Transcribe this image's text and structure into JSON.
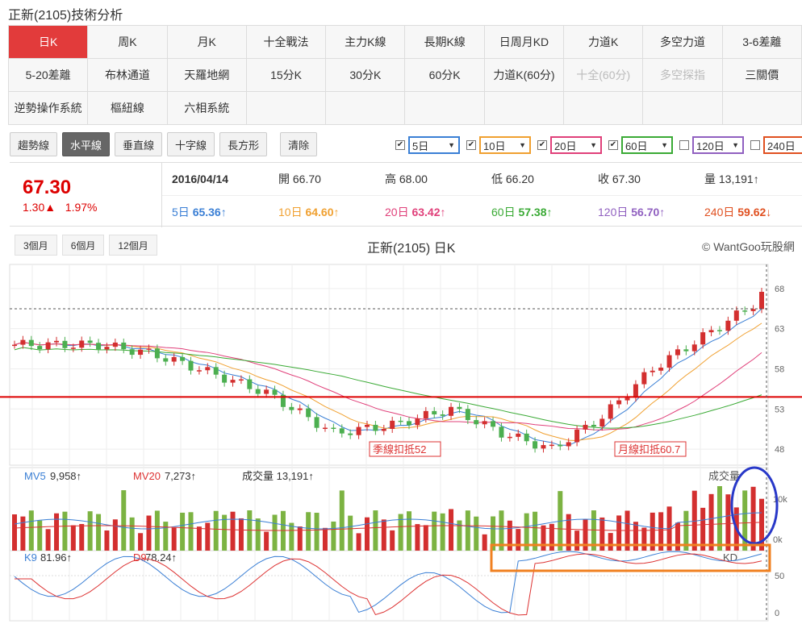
{
  "title": "正新(2105)技術分析",
  "tabs": [
    [
      "日K",
      "周K",
      "月K",
      "十全戰法",
      "主力K線",
      "長期K線",
      "日周月KD",
      "力道K",
      "多空力道",
      "3-6差離"
    ],
    [
      "5-20差離",
      "布林通道",
      "天羅地網",
      "15分K",
      "30分K",
      "60分K",
      "力道K(60分)",
      "十全(60分)",
      "多空探指",
      "三關價"
    ],
    [
      "逆勢操作系統",
      "樞紐線",
      "六相系統"
    ]
  ],
  "disabled_tabs": [
    "十全(60分)",
    "多空探指"
  ],
  "toolbar": [
    "趨勢線",
    "水平線",
    "垂直線",
    "十字線",
    "長方形",
    "清除"
  ],
  "ma_selects": [
    {
      "label": "5日",
      "checked": true,
      "color": "#3a7fd5"
    },
    {
      "label": "10日",
      "checked": true,
      "color": "#f0a030"
    },
    {
      "label": "20日",
      "checked": true,
      "color": "#e0407a"
    },
    {
      "label": "60日",
      "checked": true,
      "color": "#3aaa35"
    },
    {
      "label": "120日",
      "checked": false,
      "color": "#9060c0"
    },
    {
      "label": "240日",
      "checked": false,
      "color": "#e05020"
    }
  ],
  "quote": {
    "price": "67.30",
    "change": "1.30▲",
    "pct": "1.97%",
    "date": "2016/04/14",
    "open": "開 66.70",
    "high": "高 68.00",
    "low": "低 66.20",
    "close": "收 67.30",
    "volume": "量 13,191↑",
    "ma": [
      {
        "label": "5日 ",
        "value": "65.36",
        "arrow": "↑",
        "color": "#3a7fd5"
      },
      {
        "label": "10日 ",
        "value": "64.60",
        "arrow": "↑",
        "color": "#f0a030"
      },
      {
        "label": "20日 ",
        "value": "63.42",
        "arrow": "↑",
        "color": "#e0407a"
      },
      {
        "label": "60日 ",
        "value": "57.38",
        "arrow": "↑",
        "color": "#3aaa35"
      },
      {
        "label": "120日 ",
        "value": "56.70",
        "arrow": "↑",
        "color": "#9060c0"
      },
      {
        "label": "240日 ",
        "value": "59.62",
        "arrow": "↓",
        "color": "#e05020"
      }
    ]
  },
  "range_buttons": [
    "3個月",
    "6個月",
    "12個月"
  ],
  "chart_title": "正新(2105) 日K",
  "copyright": "© WantGoo玩股網",
  "chart_data": {
    "type": "candlestick",
    "price_ticks": [
      "68",
      "63",
      "58",
      "53",
      "48"
    ],
    "annotations": [
      "季線扣抵52",
      "月線扣抵60.7"
    ],
    "horizontal_line": 54.5,
    "volume_labels": {
      "mv5": "MV5",
      "mv5_value": "9,958↑",
      "mv20": "MV20",
      "mv20_value": "7,273↑",
      "vol": "成交量 13,191↑",
      "legend": "成交量",
      "tick_10k": "10k",
      "tick_0k": "0k"
    },
    "kd_labels": {
      "k": "K9",
      "k_value": "81.96↑",
      "d": "D9",
      "d_value": "78.24↑",
      "legend": "KD",
      "tick_50": "50",
      "tick_0": "0"
    }
  }
}
